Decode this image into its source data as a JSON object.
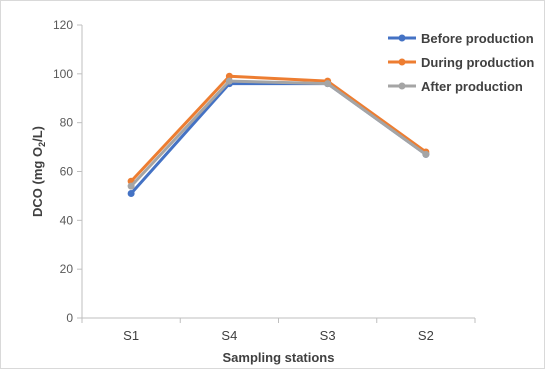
{
  "chart_data": {
    "type": "line",
    "categories": [
      "S1",
      "S4",
      "S3",
      "S2"
    ],
    "series": [
      {
        "name": "Before production",
        "color": "#4472C4",
        "values": [
          51,
          96,
          96,
          67
        ]
      },
      {
        "name": "During production",
        "color": "#ED7D31",
        "values": [
          56,
          99,
          97,
          68
        ]
      },
      {
        "name": "After production",
        "color": "#A5A5A5",
        "values": [
          54,
          97,
          96,
          67
        ]
      }
    ],
    "title": "",
    "xlabel": "Sampling stations",
    "ylabel": {
      "main": "DCO (mg O",
      "sub": "2",
      "end": "/L)"
    },
    "ylim": [
      0,
      120
    ],
    "yticks": [
      "0",
      "20",
      "40",
      "60",
      "80",
      "100",
      "120"
    ],
    "grid": false,
    "legend": "top-right"
  }
}
